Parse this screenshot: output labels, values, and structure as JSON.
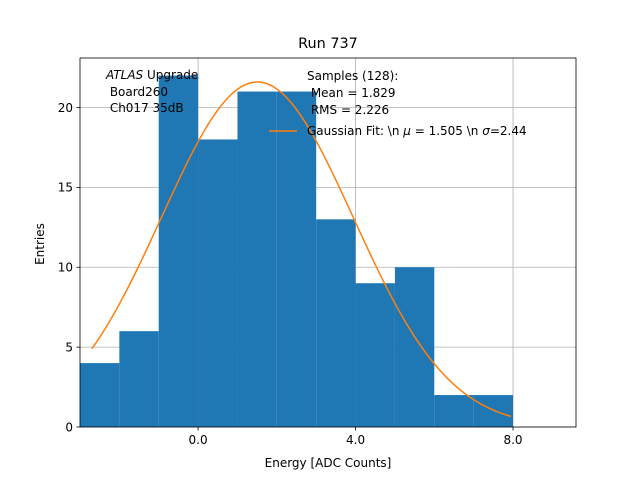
{
  "chart_data": {
    "type": "bar",
    "title": "Run 737",
    "xlabel": "Energy [ADC Counts]",
    "ylabel": "Entries",
    "xlim": [
      -3.0,
      9.6
    ],
    "ylim": [
      0,
      23.1
    ],
    "xticks": [
      0.0,
      4.0,
      8.0
    ],
    "xtick_labels": [
      "0.0",
      "4.0",
      "8.0"
    ],
    "yticks": [
      0,
      5,
      10,
      15,
      20
    ],
    "ytick_labels": [
      "0",
      "5",
      "10",
      "15",
      "20"
    ],
    "grid": true,
    "bins": [
      {
        "x0": -3.0,
        "x1": -2.0,
        "value": 4
      },
      {
        "x0": -2.0,
        "x1": -1.0,
        "value": 6
      },
      {
        "x0": -1.0,
        "x1": 0.0,
        "value": 22
      },
      {
        "x0": 0.0,
        "x1": 1.0,
        "value": 18
      },
      {
        "x0": 1.0,
        "x1": 2.0,
        "value": 21
      },
      {
        "x0": 2.0,
        "x1": 3.0,
        "value": 21
      },
      {
        "x0": 3.0,
        "x1": 4.0,
        "value": 13
      },
      {
        "x0": 4.0,
        "x1": 5.0,
        "value": 9
      },
      {
        "x0": 5.0,
        "x1": 6.0,
        "value": 10
      },
      {
        "x0": 6.0,
        "x1": 7.0,
        "value": 2
      },
      {
        "x0": 7.0,
        "x1": 8.0,
        "value": 2
      }
    ],
    "fit": {
      "label": "Gaussian Fit: \\n $\\mu$ = 1.505 \\n $\\sigma$=2.44",
      "mu": 1.505,
      "sigma": 2.44,
      "amplitude": 21.6,
      "x_range": [
        -2.7,
        7.95
      ]
    },
    "hist_label_lines": [
      "Samples (128):",
      " Mean = 1.829",
      " RMS = 2.226"
    ],
    "annotation": {
      "italic": "ATLAS",
      "upgrade": " Upgrade",
      "line2": " Board260",
      "line3": " Ch017 35dB"
    },
    "legend_position": "top-right",
    "colors": {
      "bars": "#1f77b4",
      "fit": "#ff7f0e",
      "grid": "#b0b0b0",
      "axes": "#000000"
    }
  }
}
